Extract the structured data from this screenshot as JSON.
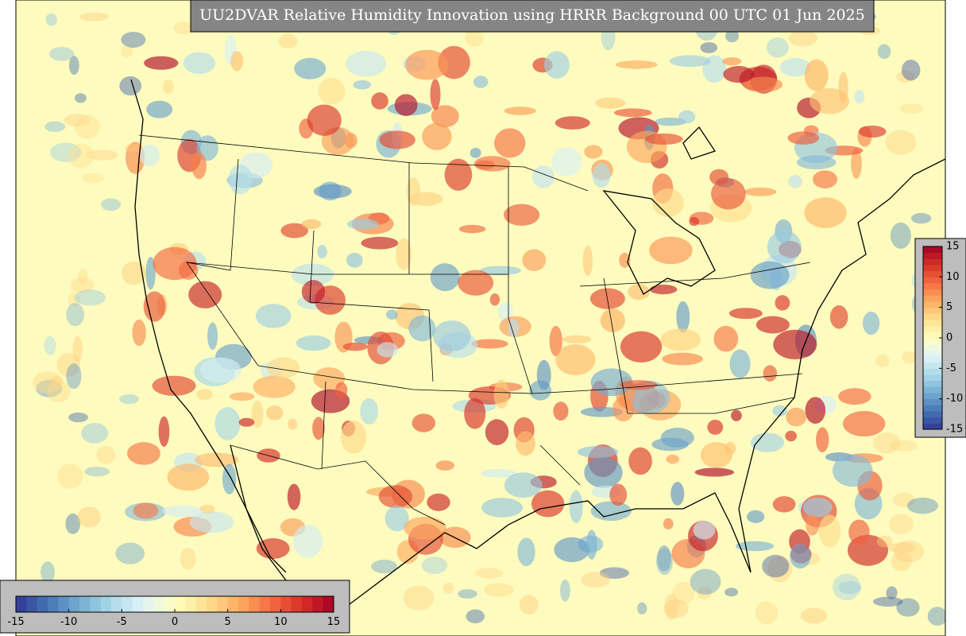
{
  "title": "UU2DVAR Relative Humidity Innovation using HRRR Background 00 UTC 01 Jun 2025",
  "colormap": [
    "#313695",
    "#4575b4",
    "#74add1",
    "#abd9e9",
    "#e0f3f8",
    "#ffffbf",
    "#fee090",
    "#fdae61",
    "#f46d43",
    "#d73027",
    "#a50026"
  ],
  "colorbar_horizontal": {
    "range": [
      -15,
      15
    ],
    "ticks": [
      -15,
      -10,
      -5,
      0,
      5,
      10,
      15
    ]
  },
  "colorbar_vertical": {
    "range": [
      -15,
      15
    ],
    "ticks": [
      15,
      10,
      5,
      0,
      -5,
      -10,
      -15
    ]
  }
}
